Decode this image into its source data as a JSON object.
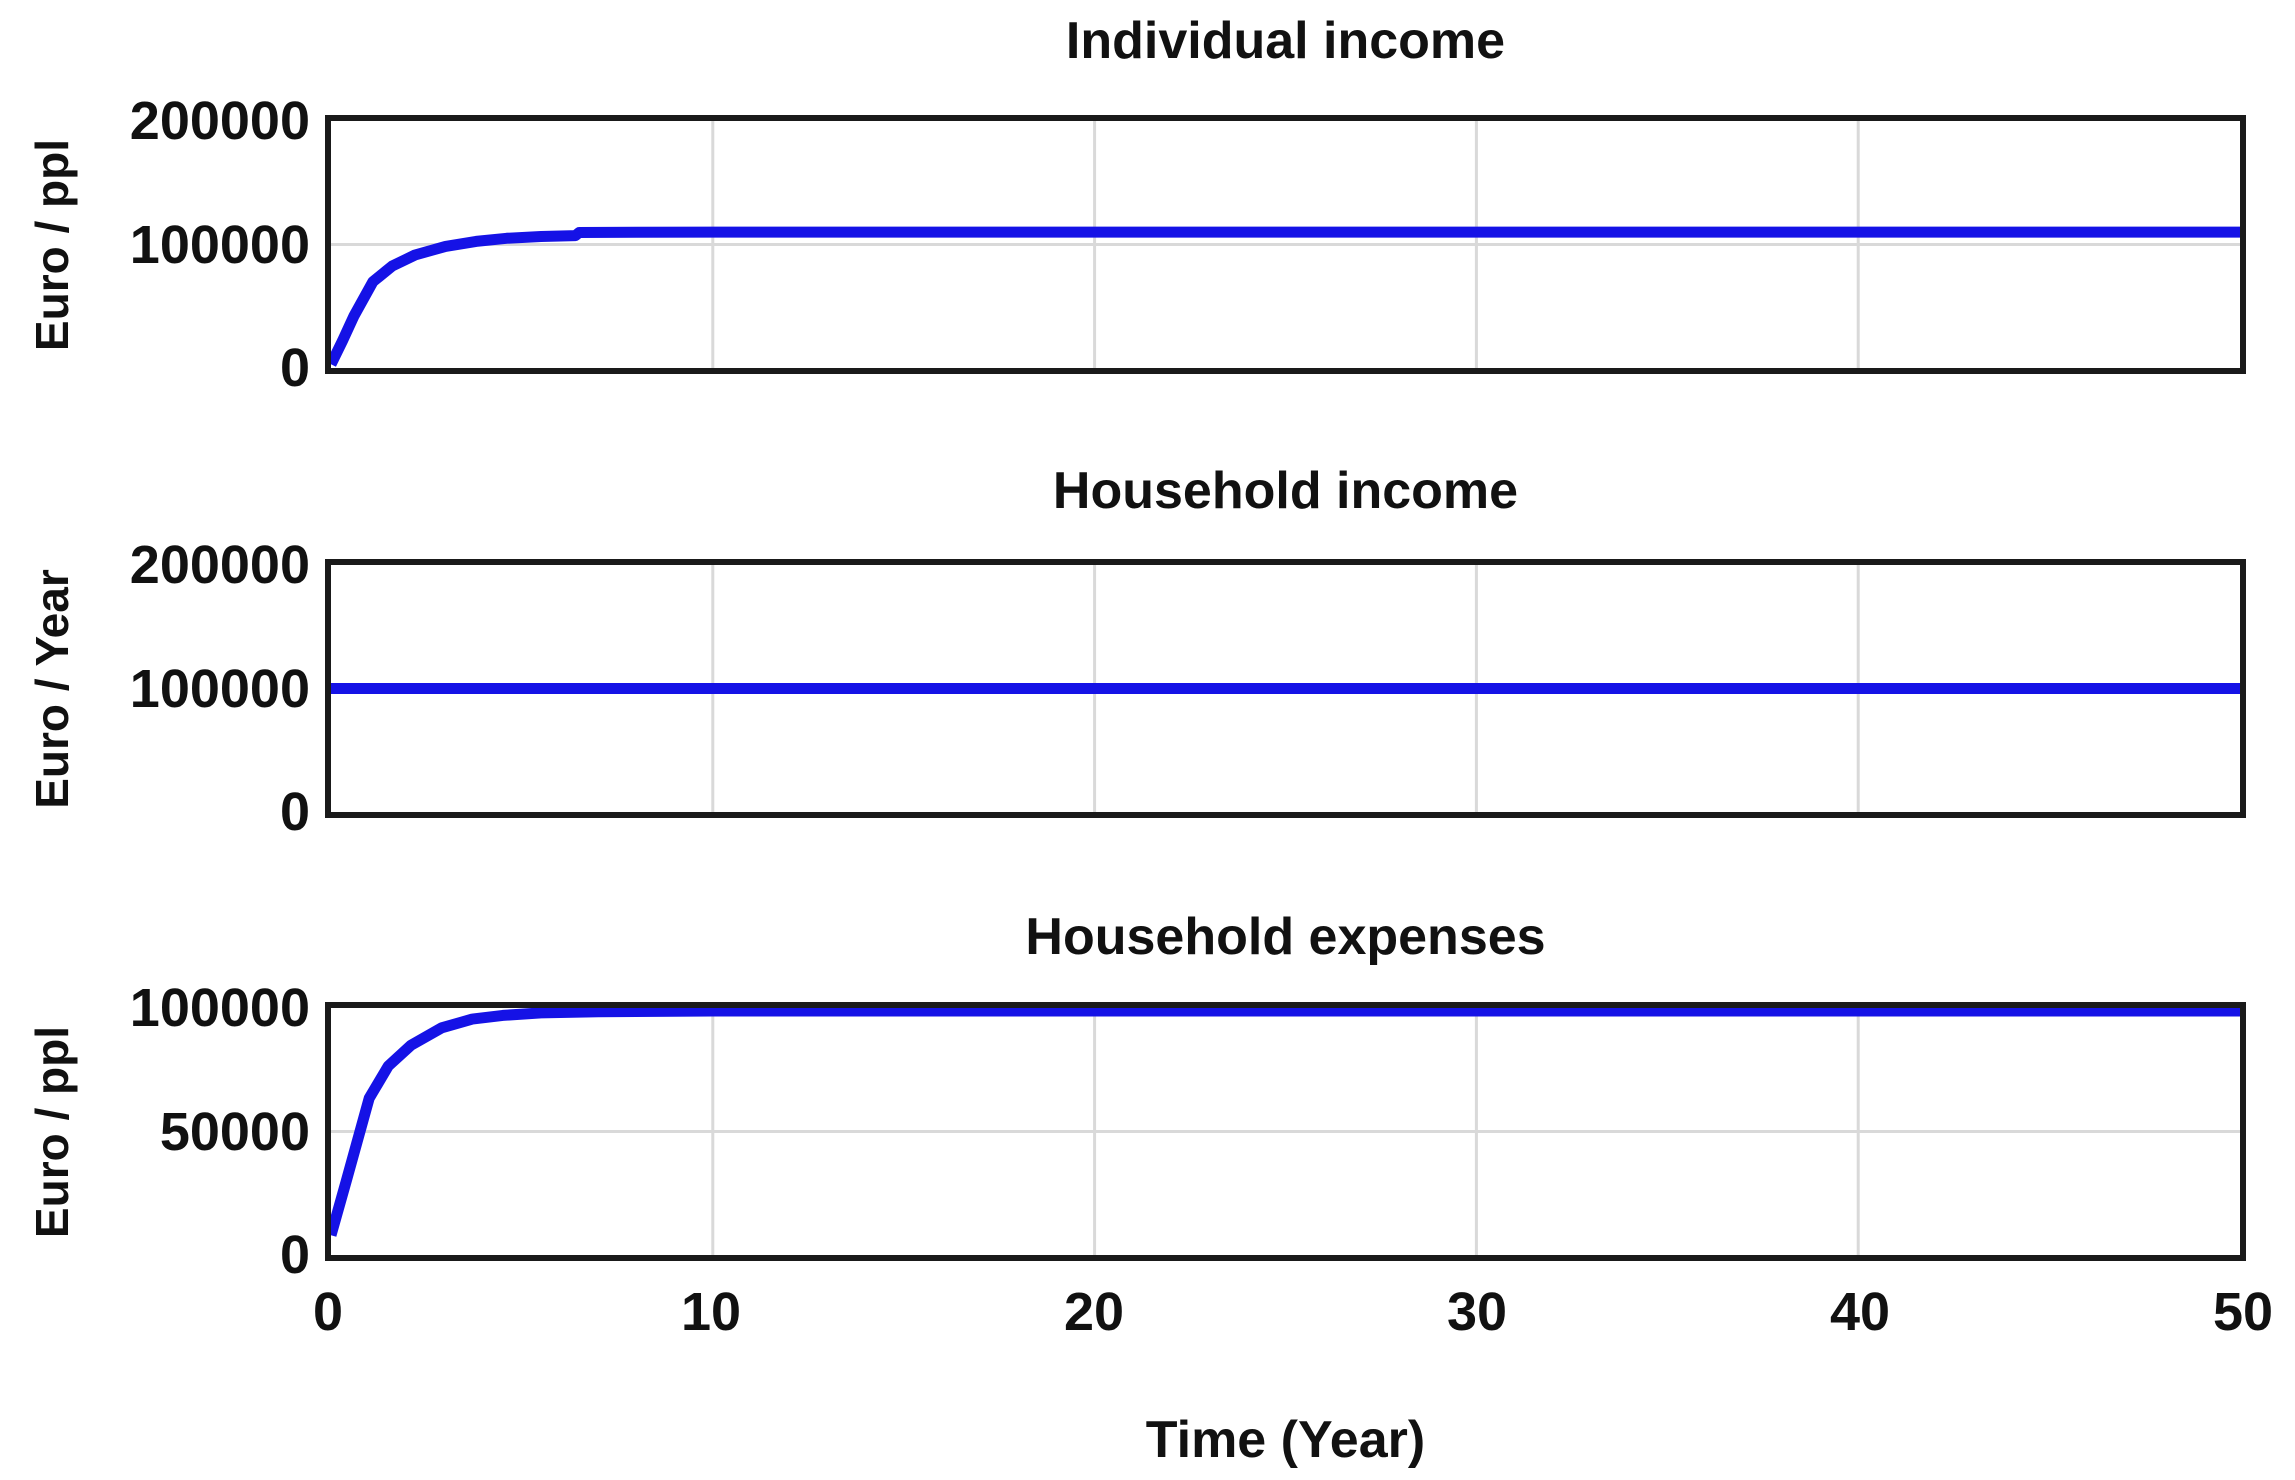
{
  "style": {
    "line_color": "#1512e6",
    "grid_color": "#d9d9d9",
    "frame_color": "#1a1a1a",
    "text_color": "#111111",
    "background": "#ffffff"
  },
  "x_axis": {
    "label": "Time (Year)",
    "range": [
      0,
      50
    ],
    "tick_labels": [
      "0",
      "10",
      "20",
      "30",
      "40",
      "50"
    ],
    "tick_values": [
      0,
      10,
      20,
      30,
      40,
      50
    ],
    "gridlines": [
      10,
      20,
      30,
      40
    ]
  },
  "chart_data": [
    {
      "type": "line",
      "title": "Individual income",
      "ylabel": "Euro / ppl",
      "xlabel": "Time (Year)",
      "xlim": [
        0,
        50
      ],
      "ylim": [
        0,
        200000
      ],
      "yticks": [
        0,
        100000,
        200000
      ],
      "ytick_labels": [
        "0",
        "100000",
        "200000"
      ],
      "grid": true,
      "legend": "none",
      "series": [
        {
          "name": "Individual income",
          "color": "#1512e6",
          "points": [
            [
              0,
              3000
            ],
            [
              0.3,
              22000
            ],
            [
              0.6,
              42000
            ],
            [
              1.1,
              70000
            ],
            [
              1.6,
              82500
            ],
            [
              2.2,
              91500
            ],
            [
              3.0,
              98500
            ],
            [
              3.8,
              102500
            ],
            [
              4.6,
              105000
            ],
            [
              5.5,
              106500
            ],
            [
              6.4,
              107200
            ],
            [
              6.5,
              109700
            ],
            [
              8,
              109900
            ],
            [
              10,
              110000
            ],
            [
              50,
              110000
            ]
          ]
        }
      ]
    },
    {
      "type": "line",
      "title": "Household income",
      "ylabel": "Euro / Year",
      "xlabel": "Time (Year)",
      "xlim": [
        0,
        50
      ],
      "ylim": [
        0,
        200000
      ],
      "yticks": [
        0,
        100000,
        200000
      ],
      "ytick_labels": [
        "0",
        "100000",
        "200000"
      ],
      "grid": true,
      "legend": "none",
      "series": [
        {
          "name": "Household income",
          "color": "#1512e6",
          "points": [
            [
              0,
              100000
            ],
            [
              50,
              100000
            ]
          ]
        }
      ]
    },
    {
      "type": "line",
      "title": "Household expenses",
      "ylabel": "Euro / ppl",
      "xlabel": "Time (Year)",
      "xlim": [
        0,
        50
      ],
      "ylim": [
        0,
        100000
      ],
      "yticks": [
        0,
        50000,
        100000
      ],
      "ytick_labels": [
        "0",
        "50000",
        "100000"
      ],
      "grid": true,
      "legend": "none",
      "series": [
        {
          "name": "Household expenses",
          "color": "#1512e6",
          "points": [
            [
              0,
              8000
            ],
            [
              0.4,
              30000
            ],
            [
              1.0,
              63500
            ],
            [
              1.5,
              76500
            ],
            [
              2.1,
              85000
            ],
            [
              2.9,
              92000
            ],
            [
              3.7,
              95500
            ],
            [
              4.5,
              97000
            ],
            [
              5.5,
              98000
            ],
            [
              7,
              98500
            ],
            [
              10,
              98800
            ],
            [
              50,
              98800
            ]
          ]
        }
      ]
    }
  ]
}
